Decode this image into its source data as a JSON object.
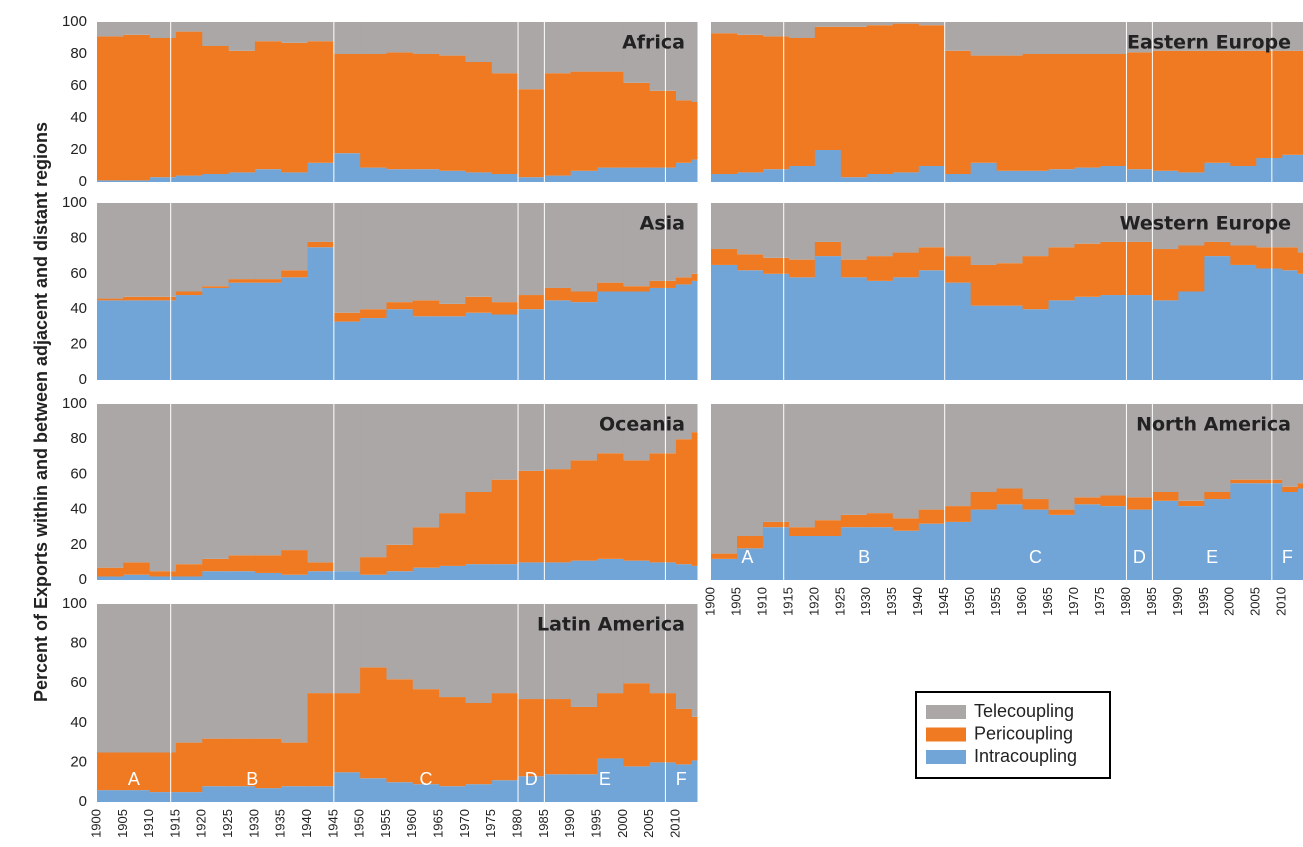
{
  "chart_data": [
    {
      "type": "bar",
      "title": "Africa",
      "ylabel": "Percent of Exports within and between adjacent and distant  regions",
      "x": [
        1900,
        1905,
        1910,
        1915,
        1920,
        1925,
        1930,
        1935,
        1940,
        1945,
        1950,
        1955,
        1960,
        1965,
        1970,
        1975,
        1980,
        1985,
        1990,
        1995,
        2000,
        2005,
        2010,
        2013
      ],
      "xlim": [
        1900,
        2014
      ],
      "ylim": [
        0,
        100
      ],
      "yticks": [
        0,
        20,
        40,
        60,
        80,
        100
      ],
      "period_breaks": [
        1914,
        1945,
        1980,
        1985,
        2008
      ],
      "series": [
        {
          "name": "Intracoupling",
          "color": "#72a5d7",
          "values": [
            1,
            1,
            3,
            4,
            5,
            6,
            8,
            6,
            12,
            18,
            9,
            8,
            8,
            7,
            6,
            5,
            3,
            4,
            7,
            9,
            9,
            9,
            12,
            14
          ]
        },
        {
          "name": "Pericoupling",
          "color": "#ef7a22",
          "values": [
            90,
            91,
            87,
            90,
            80,
            76,
            80,
            81,
            76,
            62,
            71,
            73,
            72,
            72,
            69,
            63,
            55,
            64,
            62,
            60,
            53,
            48,
            39,
            36
          ]
        },
        {
          "name": "Telecoupling",
          "color": "#aba7a6",
          "values": [
            9,
            8,
            10,
            6,
            15,
            18,
            12,
            13,
            12,
            20,
            20,
            19,
            20,
            21,
            25,
            32,
            42,
            32,
            31,
            31,
            38,
            43,
            49,
            50
          ]
        }
      ]
    },
    {
      "type": "bar",
      "title": "Eastern Europe",
      "x": [
        1900,
        1905,
        1910,
        1915,
        1920,
        1925,
        1930,
        1935,
        1940,
        1945,
        1950,
        1955,
        1960,
        1965,
        1970,
        1975,
        1980,
        1985,
        1990,
        1995,
        2000,
        2005,
        2010,
        2013
      ],
      "xlim": [
        1900,
        2014
      ],
      "ylim": [
        0,
        100
      ],
      "period_breaks": [
        1914,
        1945,
        1980,
        1985,
        2008
      ],
      "series": [
        {
          "name": "Intracoupling",
          "color": "#72a5d7",
          "values": [
            5,
            6,
            8,
            10,
            20,
            3,
            5,
            6,
            10,
            5,
            12,
            7,
            7,
            8,
            9,
            10,
            8,
            7,
            6,
            12,
            10,
            15,
            17,
            17
          ]
        },
        {
          "name": "Pericoupling",
          "color": "#ef7a22",
          "values": [
            88,
            86,
            83,
            80,
            77,
            94,
            93,
            93,
            88,
            77,
            67,
            72,
            73,
            72,
            71,
            70,
            73,
            75,
            76,
            70,
            72,
            67,
            65,
            65
          ]
        },
        {
          "name": "Telecoupling",
          "color": "#aba7a6",
          "values": [
            7,
            8,
            9,
            10,
            3,
            3,
            2,
            1,
            2,
            18,
            21,
            21,
            20,
            20,
            20,
            20,
            19,
            18,
            18,
            18,
            18,
            18,
            18,
            18
          ]
        }
      ]
    },
    {
      "type": "bar",
      "title": "Asia",
      "x": [
        1900,
        1905,
        1910,
        1915,
        1920,
        1925,
        1930,
        1935,
        1940,
        1945,
        1950,
        1955,
        1960,
        1965,
        1970,
        1975,
        1980,
        1985,
        1990,
        1995,
        2000,
        2005,
        2010,
        2013
      ],
      "xlim": [
        1900,
        2014
      ],
      "ylim": [
        0,
        100
      ],
      "yticks": [
        0,
        20,
        40,
        60,
        80,
        100
      ],
      "period_breaks": [
        1914,
        1945,
        1980,
        1985,
        2008
      ],
      "series": [
        {
          "name": "Intracoupling",
          "color": "#72a5d7",
          "values": [
            45,
            45,
            45,
            48,
            52,
            55,
            55,
            58,
            75,
            33,
            35,
            40,
            36,
            36,
            38,
            37,
            40,
            45,
            44,
            50,
            50,
            52,
            54,
            56
          ]
        },
        {
          "name": "Pericoupling",
          "color": "#ef7a22",
          "values": [
            1,
            2,
            2,
            2,
            1,
            2,
            2,
            4,
            3,
            5,
            5,
            4,
            9,
            7,
            9,
            7,
            8,
            7,
            6,
            5,
            3,
            4,
            4,
            4
          ]
        },
        {
          "name": "Telecoupling",
          "color": "#aba7a6",
          "values": [
            54,
            53,
            53,
            50,
            47,
            43,
            43,
            38,
            22,
            62,
            60,
            56,
            55,
            57,
            53,
            56,
            52,
            48,
            50,
            45,
            47,
            44,
            42,
            40
          ]
        }
      ]
    },
    {
      "type": "bar",
      "title": "Western Europe",
      "x": [
        1900,
        1905,
        1910,
        1915,
        1920,
        1925,
        1930,
        1935,
        1940,
        1945,
        1950,
        1955,
        1960,
        1965,
        1970,
        1975,
        1980,
        1985,
        1990,
        1995,
        2000,
        2005,
        2010,
        2013
      ],
      "xlim": [
        1900,
        2014
      ],
      "ylim": [
        0,
        100
      ],
      "period_breaks": [
        1914,
        1945,
        1980,
        1985,
        2008
      ],
      "series": [
        {
          "name": "Intracoupling",
          "color": "#72a5d7",
          "values": [
            65,
            62,
            60,
            58,
            70,
            58,
            56,
            58,
            62,
            55,
            42,
            42,
            40,
            45,
            47,
            48,
            48,
            45,
            50,
            70,
            65,
            63,
            62,
            60
          ]
        },
        {
          "name": "Pericoupling",
          "color": "#ef7a22",
          "values": [
            9,
            9,
            9,
            10,
            8,
            10,
            14,
            14,
            13,
            15,
            23,
            24,
            30,
            30,
            30,
            30,
            30,
            29,
            26,
            8,
            11,
            12,
            13,
            12
          ]
        },
        {
          "name": "Telecoupling",
          "color": "#aba7a6",
          "values": [
            26,
            29,
            31,
            32,
            22,
            32,
            30,
            28,
            25,
            30,
            35,
            34,
            30,
            25,
            23,
            22,
            22,
            26,
            24,
            22,
            24,
            25,
            25,
            28
          ]
        }
      ]
    },
    {
      "type": "bar",
      "title": "Oceania",
      "x": [
        1900,
        1905,
        1910,
        1915,
        1920,
        1925,
        1930,
        1935,
        1940,
        1945,
        1950,
        1955,
        1960,
        1965,
        1970,
        1975,
        1980,
        1985,
        1990,
        1995,
        2000,
        2005,
        2010,
        2013
      ],
      "xlim": [
        1900,
        2014
      ],
      "ylim": [
        0,
        100
      ],
      "yticks": [
        0,
        20,
        40,
        60,
        80,
        100
      ],
      "period_breaks": [
        1914,
        1945,
        1980,
        1985,
        2008
      ],
      "series": [
        {
          "name": "Intracoupling",
          "color": "#72a5d7",
          "values": [
            2,
            3,
            2,
            2,
            5,
            5,
            4,
            3,
            5,
            5,
            3,
            5,
            7,
            8,
            9,
            9,
            10,
            10,
            11,
            12,
            11,
            10,
            9,
            8
          ]
        },
        {
          "name": "Pericoupling",
          "color": "#ef7a22",
          "values": [
            5,
            7,
            3,
            7,
            7,
            9,
            10,
            14,
            5,
            0,
            10,
            15,
            23,
            30,
            41,
            48,
            52,
            53,
            57,
            60,
            57,
            62,
            71,
            76
          ]
        },
        {
          "name": "Telecoupling",
          "color": "#aba7a6",
          "values": [
            93,
            90,
            95,
            91,
            88,
            86,
            86,
            83,
            90,
            95,
            87,
            80,
            70,
            62,
            50,
            43,
            38,
            37,
            32,
            28,
            32,
            28,
            20,
            16
          ]
        }
      ]
    },
    {
      "type": "bar",
      "title": "North America",
      "x": [
        1900,
        1905,
        1910,
        1915,
        1920,
        1925,
        1930,
        1935,
        1940,
        1945,
        1950,
        1955,
        1960,
        1965,
        1970,
        1975,
        1980,
        1985,
        1990,
        1995,
        2000,
        2005,
        2010,
        2013
      ],
      "xlim": [
        1900,
        2014
      ],
      "ylim": [
        0,
        100
      ],
      "period_breaks": [
        1914,
        1945,
        1980,
        1985,
        2008
      ],
      "periods": [
        "A",
        "B",
        "C",
        "D",
        "E",
        "F"
      ],
      "xticks": [
        1900,
        1905,
        1910,
        1915,
        1920,
        1925,
        1930,
        1935,
        1940,
        1945,
        1950,
        1955,
        1960,
        1965,
        1970,
        1975,
        1980,
        1985,
        1990,
        1995,
        2000,
        2005,
        2010
      ],
      "series": [
        {
          "name": "Intracoupling",
          "color": "#72a5d7",
          "values": [
            12,
            18,
            30,
            25,
            25,
            30,
            30,
            28,
            32,
            33,
            40,
            43,
            40,
            37,
            43,
            42,
            40,
            45,
            42,
            46,
            55,
            55,
            50,
            52
          ]
        },
        {
          "name": "Pericoupling",
          "color": "#ef7a22",
          "values": [
            3,
            7,
            3,
            5,
            9,
            7,
            8,
            7,
            8,
            9,
            10,
            9,
            6,
            3,
            4,
            6,
            7,
            5,
            3,
            4,
            2,
            2,
            3,
            3
          ]
        },
        {
          "name": "Telecoupling",
          "color": "#aba7a6",
          "values": [
            85,
            75,
            67,
            70,
            66,
            63,
            62,
            65,
            60,
            58,
            50,
            48,
            54,
            60,
            53,
            52,
            53,
            50,
            55,
            50,
            43,
            43,
            47,
            45
          ]
        }
      ]
    },
    {
      "type": "bar",
      "title": "Latin America",
      "x": [
        1900,
        1905,
        1910,
        1915,
        1920,
        1925,
        1930,
        1935,
        1940,
        1945,
        1950,
        1955,
        1960,
        1965,
        1970,
        1975,
        1980,
        1985,
        1990,
        1995,
        2000,
        2005,
        2010,
        2013
      ],
      "xlim": [
        1900,
        2014
      ],
      "ylim": [
        0,
        100
      ],
      "yticks": [
        0,
        20,
        40,
        60,
        80,
        100
      ],
      "period_breaks": [
        1914,
        1945,
        1980,
        1985,
        2008
      ],
      "periods": [
        "A",
        "B",
        "C",
        "D",
        "E",
        "F"
      ],
      "xticks": [
        1900,
        1905,
        1910,
        1915,
        1920,
        1925,
        1930,
        1935,
        1940,
        1945,
        1950,
        1955,
        1960,
        1965,
        1970,
        1975,
        1980,
        1985,
        1990,
        1995,
        2000,
        2005,
        2010
      ],
      "series": [
        {
          "name": "Intracoupling",
          "color": "#72a5d7",
          "values": [
            6,
            6,
            5,
            5,
            8,
            8,
            7,
            8,
            8,
            15,
            12,
            10,
            9,
            8,
            9,
            11,
            13,
            14,
            14,
            22,
            18,
            20,
            19,
            21
          ]
        },
        {
          "name": "Pericoupling",
          "color": "#ef7a22",
          "values": [
            19,
            19,
            20,
            25,
            24,
            24,
            25,
            22,
            47,
            40,
            56,
            52,
            48,
            45,
            41,
            44,
            39,
            38,
            34,
            33,
            42,
            35,
            28,
            22
          ]
        },
        {
          "name": "Telecoupling",
          "color": "#aba7a6",
          "values": [
            75,
            75,
            75,
            70,
            68,
            68,
            68,
            70,
            45,
            45,
            32,
            38,
            43,
            47,
            50,
            45,
            48,
            48,
            52,
            45,
            40,
            45,
            53,
            57
          ]
        }
      ]
    }
  ]
}
